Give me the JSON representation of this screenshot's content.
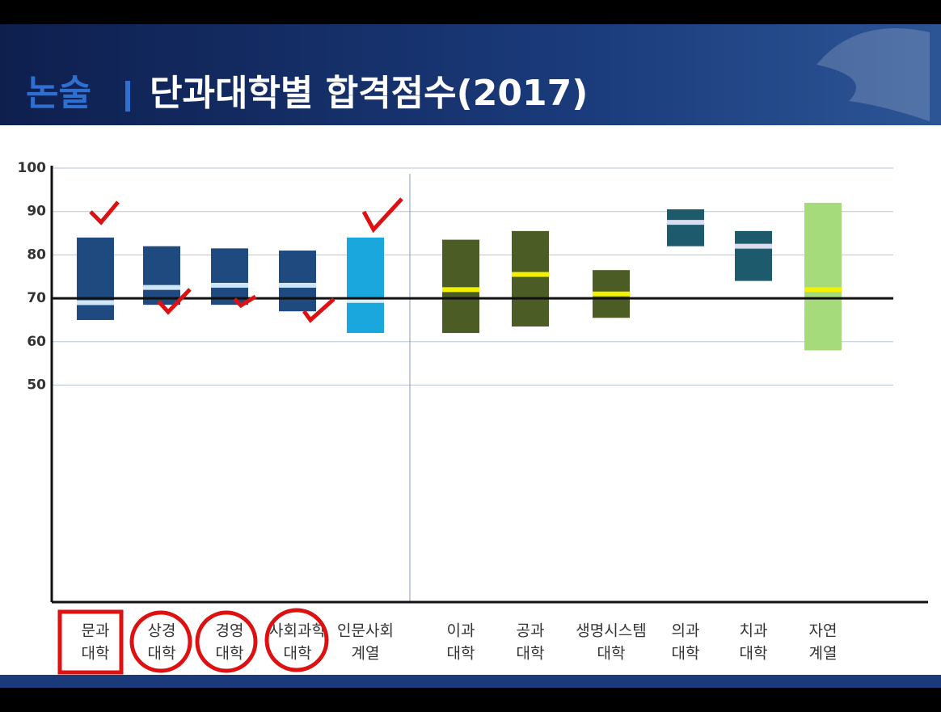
{
  "chart_data": {
    "type": "floating-bar",
    "title_prefix": "논술",
    "title": "단과대학별 합격점수(2017)",
    "categories": [
      [
        "문과",
        "대학"
      ],
      [
        "상경",
        "대학"
      ],
      [
        "경영",
        "대학"
      ],
      [
        "사회과학",
        "대학"
      ],
      [
        "인문사회",
        "계열"
      ],
      [
        "이과",
        "대학"
      ],
      [
        "공과",
        "대학"
      ],
      [
        "생명시스템",
        "대학"
      ],
      [
        "의과",
        "대학"
      ],
      [
        "치과",
        "대학"
      ],
      [
        "자연",
        "계열"
      ]
    ],
    "low": [
      65,
      68.5,
      68.5,
      67,
      62,
      62,
      63.5,
      65.5,
      82,
      74,
      58
    ],
    "high": [
      84,
      82,
      81.5,
      81,
      84,
      83.5,
      85.5,
      76.5,
      90.5,
      85.5,
      92
    ],
    "mid": [
      69,
      72.5,
      73,
      73,
      69.5,
      72,
      75.5,
      71,
      87.5,
      82,
      72
    ],
    "colors": [
      "#1f4a80",
      "#1f4a80",
      "#1f4a80",
      "#1f4a80",
      "#19a7dd",
      "#4b5d24",
      "#4b5d24",
      "#4b5d24",
      "#1d5b6c",
      "#1d5b6c",
      "#a6db7c"
    ],
    "marker_colors": [
      "#cfe6f7",
      "#cfe6f7",
      "#cfe6f7",
      "#cfe6f7",
      "#d8f0fb",
      "#f2f200",
      "#f2f200",
      "#f2f200",
      "#dcdcf0",
      "#dcdcf0",
      "#f2f200"
    ],
    "reference_line": 70,
    "ylim": [
      0,
      100
    ],
    "yticks": [
      50,
      60,
      70,
      80,
      90,
      100
    ],
    "grid": true
  }
}
